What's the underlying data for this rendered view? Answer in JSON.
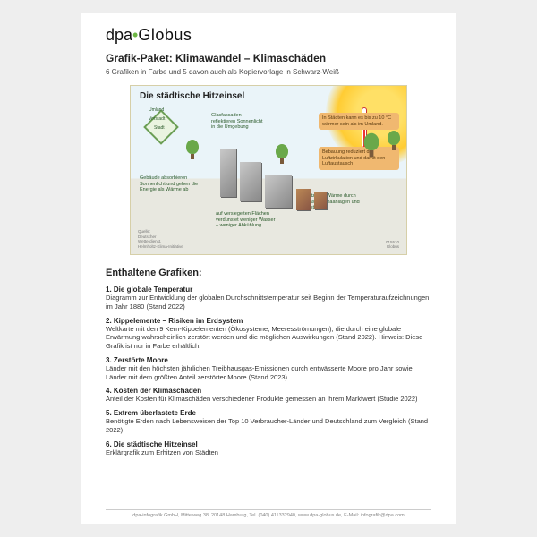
{
  "brand": {
    "part1": "dpa",
    "part2": "Globus"
  },
  "header": {
    "title": "Grafik-Paket: Klimawandel – Klimaschäden",
    "subtitle": "6 Grafiken in Farbe und 5 davon auch als Kopiervorlage in Schwarz-Weiß"
  },
  "infographic": {
    "title": "Die städtische Hitzeinsel",
    "diamond": {
      "outer": "Umland",
      "middle": "Vorstadt",
      "inner": "Stadt"
    },
    "orangebox1": "In Städten kann es bis zu 10 °C wärmer sein als im Umland.",
    "orangebox2": "Bebauung reduziert die Luftzirkulation und damit den Luftaustausch",
    "annot_glass": "Glasfassaden reflektieren Sonnenlicht in die Umgebung",
    "annot_absorb": "Gebäude absorbieren Sonnenlicht und geben die Energie als Wärme ab",
    "annot_sealed": "auf versiegelten Flächen verdunstet weniger Wasser – weniger Abkühlung",
    "annot_extra": "zusätzliche Wärme durch Abgase, Klimaanlagen und Industrie",
    "source": "Quelle:\nDeutscher\nWetterdienst,\nHelmholtz-Klima-Initiative",
    "id": "015510\nGlobus",
    "colors": {
      "sky": "#eaf4f9",
      "ground": "#e8e8e0",
      "sun": "#ffcc33",
      "accent": "#f0b870",
      "green": "#6aa84a"
    }
  },
  "list": {
    "heading": "Enthaltene Grafiken:",
    "items": [
      {
        "title": "1. Die globale Temperatur",
        "desc": "Diagramm zur Entwicklung der globalen Durchschnittstemperatur seit Beginn der Temperaturaufzeichnungen im Jahr 1880 (Stand 2022)"
      },
      {
        "title": "2. Kippelemente – Risiken im Erdsystem",
        "desc": "Weltkarte mit den 9 Kern-Kippelementen (Ökosysteme, Meeresströmungen), die durch eine globale Erwärmung wahrscheinlich zerstört werden und die möglichen Auswirkungen (Stand 2022). Hinweis: Diese Grafik ist nur in Farbe erhältlich."
      },
      {
        "title": "3. Zerstörte Moore",
        "desc": "Länder mit den höchsten jährlichen Treibhausgas-Emissionen durch entwässerte Moore pro Jahr sowie Länder mit dem größten Anteil zerstörter Moore (Stand 2023)"
      },
      {
        "title": "4. Kosten der Klimaschäden",
        "desc": "Anteil der Kosten für Klimaschäden verschiedener Produkte gemessen an ihrem Marktwert (Studie 2022)"
      },
      {
        "title": "5. Extrem überlastete Erde",
        "desc": "Benötigte Erden nach Lebensweisen der Top 10 Verbraucher-Länder und Deutschland zum Vergleich (Stand 2022)"
      },
      {
        "title": "6. Die städtische Hitzeinsel",
        "desc": "Erklärgrafik zum Erhitzen von Städten"
      }
    ]
  },
  "footer": "dpa-infografik GmbH, Mittelweg 38, 20148 Hamburg, Tel. (040) 411332940, www.dpa-globus.de, E-Mail: infografik@dpa.com"
}
